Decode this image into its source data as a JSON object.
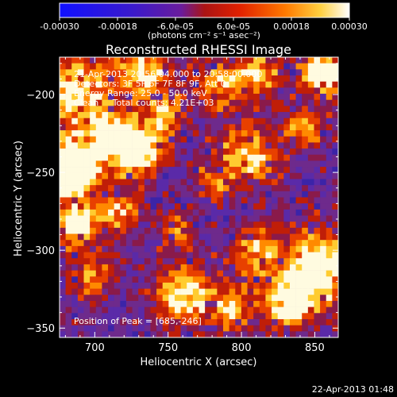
{
  "colorbar": {
    "tick_labels": [
      "-0.00030",
      "-0.00018",
      "-6.0e-05",
      "6.0e-05",
      "0.00018",
      "0.00030"
    ],
    "tick_values": [
      -0.0003,
      -0.00018,
      -6e-05,
      6e-05,
      0.00018,
      0.0003
    ],
    "range": [
      -0.0003,
      0.0003
    ],
    "unit_label": "(photons cm⁻² s⁻¹ asec⁻²)",
    "colormap": "rhessi-blue-to-red-to-white"
  },
  "chart_data": {
    "type": "heatmap",
    "title": "Reconstructed RHESSI Image",
    "xlabel": "Heliocentric X (arcsec)",
    "ylabel": "Heliocentric Y (arcsec)",
    "xlim": [
      676,
      866
    ],
    "ylim": [
      -356,
      -176
    ],
    "x_ticks": [
      700,
      750,
      800,
      850
    ],
    "y_ticks": [
      -200,
      -250,
      -300,
      -350
    ],
    "x_tick_labels": [
      "700",
      "750",
      "800",
      "850"
    ],
    "y_tick_labels": [
      "−200",
      "−250",
      "−300",
      "−350"
    ],
    "peak": {
      "x": 685,
      "y": -246
    }
  },
  "annotations": {
    "time_range": "21-Apr-2013 20:56:04.000 to 20:58:00.000",
    "detectors": "Detectors: 3F 5F 6F 7F 8F 9F, Att 0",
    "energy_range": "Energy Range: 25.0 - 50.0 keV",
    "clean_counts": "Clean     Total counts: 4.21E+03",
    "peak_position": "Position of Peak = [685,-246]"
  },
  "footer": {
    "timestamp": "22-Apr-2013 01:48"
  },
  "colors": {
    "background": "#000000",
    "text": "#ffffff",
    "cmap_low": "#1a1aff",
    "cmap_mid": "#6a1cc8",
    "cmap_high": "#ff5a00",
    "cmap_max": "#ffffff"
  }
}
